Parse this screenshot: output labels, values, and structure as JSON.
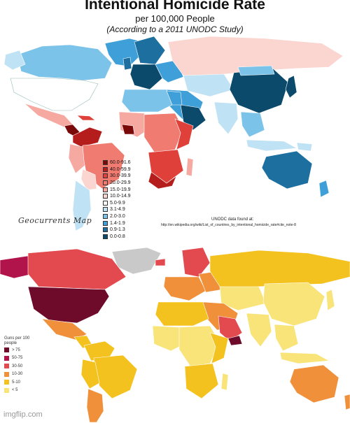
{
  "map1": {
    "title": "Intentional Homicide Rate",
    "subtitle": "per 100,000 People",
    "note": "(According to a 2011 UNODC Study)",
    "credit": "Geocurrents Map",
    "source_label": "UNODC data found at:",
    "source_url": "http://en.wikipedia.org/wiki/List_of_countries_by_intentional_homicide_rate#cite_note-8",
    "legend": [
      {
        "label": "60.0-91.6",
        "color": "#7a0a0a"
      },
      {
        "label": "40.0-59.9",
        "color": "#b51d1d"
      },
      {
        "label": "30.0-39.9",
        "color": "#e0403a"
      },
      {
        "label": "20.0-29.9",
        "color": "#ef7b71"
      },
      {
        "label": "15.0-19.9",
        "color": "#f6a9a1"
      },
      {
        "label": "10.0-14.9",
        "color": "#fbd5cf"
      },
      {
        "label": "5.0-9.9",
        "color": "#ffffff"
      },
      {
        "label": "3.1-4.9",
        "color": "#bfe2f4"
      },
      {
        "label": "2.0-3.0",
        "color": "#7cc3ea"
      },
      {
        "label": "1.4-1.9",
        "color": "#3f9fd8"
      },
      {
        "label": "0.9-1.3",
        "color": "#1c6f9f"
      },
      {
        "label": "0.0-0.8",
        "color": "#0b4a6b"
      }
    ]
  },
  "map2": {
    "legend_title": "Guns per 100 people",
    "legend": [
      {
        "label": "> 75",
        "color": "#6e0a2a"
      },
      {
        "label": "50-75",
        "color": "#b0144a"
      },
      {
        "label": "30-50",
        "color": "#e34a4f"
      },
      {
        "label": "10-30",
        "color": "#f0903a"
      },
      {
        "label": "5-10",
        "color": "#f4c21f"
      },
      {
        "label": "< 5",
        "color": "#f9e47a"
      }
    ]
  },
  "watermark": "imgflip.com"
}
